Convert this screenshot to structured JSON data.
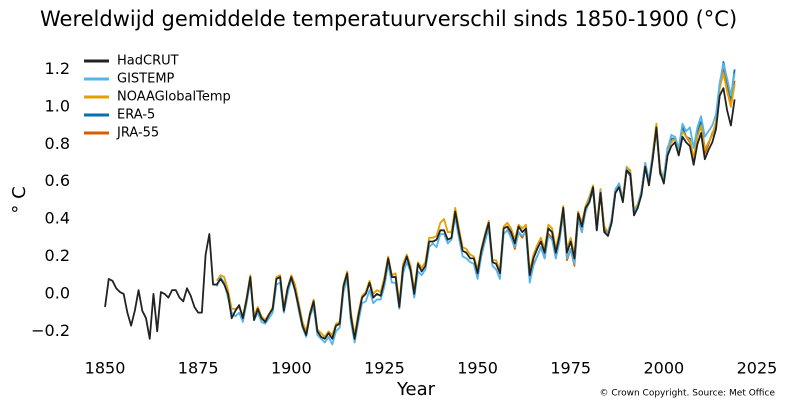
{
  "chart_data": {
    "type": "line",
    "title": "Wereldwijd gemiddelde temperatuurverschil sinds 1850-1900 (°C)",
    "x_label": "Year",
    "y_label": "° C",
    "source": "© Crown Copyright. Source: Met Office",
    "legend": "upper left",
    "grid": false,
    "xlim": [
      1841,
      2030
    ],
    "ylim": [
      -0.3,
      1.32
    ],
    "xticks": [
      1850,
      1875,
      1900,
      1925,
      1950,
      1975,
      2000,
      2025
    ],
    "yticks": [
      {
        "value": -0.2,
        "label": "−0.2"
      },
      {
        "value": 0,
        "label": "0.0"
      },
      0.2,
      0.4,
      0.6,
      0.8,
      {
        "value": 1,
        "label": "1.0"
      },
      {
        "value": 1.2,
        "label": "1.2"
      }
    ],
    "x": [
      1850,
      1851,
      1852,
      1853,
      1854,
      1855,
      1856,
      1857,
      1858,
      1859,
      1860,
      1861,
      1862,
      1863,
      1864,
      1865,
      1866,
      1867,
      1868,
      1869,
      1870,
      1871,
      1872,
      1873,
      1874,
      1875,
      1876,
      1877,
      1878,
      1879,
      1880,
      1881,
      1882,
      1883,
      1884,
      1885,
      1886,
      1887,
      1888,
      1889,
      1890,
      1891,
      1892,
      1893,
      1894,
      1895,
      1896,
      1897,
      1898,
      1899,
      1900,
      1901,
      1902,
      1903,
      1904,
      1905,
      1906,
      1907,
      1908,
      1909,
      1910,
      1911,
      1912,
      1913,
      1914,
      1915,
      1916,
      1917,
      1918,
      1919,
      1920,
      1921,
      1922,
      1923,
      1924,
      1925,
      1926,
      1927,
      1928,
      1929,
      1930,
      1931,
      1932,
      1933,
      1934,
      1935,
      1936,
      1937,
      1938,
      1939,
      1940,
      1941,
      1942,
      1943,
      1944,
      1945,
      1946,
      1947,
      1948,
      1949,
      1950,
      1951,
      1952,
      1953,
      1954,
      1955,
      1956,
      1957,
      1958,
      1959,
      1960,
      1961,
      1962,
      1963,
      1964,
      1965,
      1966,
      1967,
      1968,
      1969,
      1970,
      1971,
      1972,
      1973,
      1974,
      1975,
      1976,
      1977,
      1978,
      1979,
      1980,
      1981,
      1982,
      1983,
      1984,
      1985,
      1986,
      1987,
      1988,
      1989,
      1990,
      1991,
      1992,
      1993,
      1994,
      1995,
      1996,
      1997,
      1998,
      1999,
      2000,
      2001,
      2002,
      2003,
      2004,
      2005,
      2006,
      2007,
      2008,
      2009,
      2010,
      2011,
      2012,
      2013,
      2014,
      2015,
      2016,
      2017,
      2018,
      2019
    ],
    "series": [
      {
        "name": "HadCRUT",
        "color": "#222222",
        "values": [
          -0.07,
          0.08,
          0.07,
          0.03,
          0.01,
          0.0,
          -0.1,
          -0.17,
          -0.09,
          0.02,
          -0.09,
          -0.13,
          -0.24,
          0.0,
          -0.2,
          0.01,
          0.0,
          -0.02,
          0.02,
          0.02,
          -0.02,
          -0.04,
          0.03,
          -0.01,
          -0.07,
          -0.1,
          -0.1,
          0.21,
          0.32,
          0.05,
          0.05,
          0.08,
          0.05,
          0.0,
          -0.13,
          -0.09,
          -0.06,
          -0.13,
          -0.03,
          0.09,
          -0.14,
          -0.08,
          -0.13,
          -0.15,
          -0.11,
          -0.08,
          0.08,
          0.09,
          -0.09,
          0.03,
          0.09,
          0.02,
          -0.07,
          -0.17,
          -0.22,
          -0.11,
          -0.04,
          -0.2,
          -0.23,
          -0.24,
          -0.21,
          -0.24,
          -0.17,
          -0.16,
          0.04,
          0.11,
          -0.12,
          -0.24,
          -0.12,
          -0.02,
          0.0,
          0.06,
          -0.02,
          0.0,
          -0.01,
          0.07,
          0.19,
          0.09,
          0.09,
          -0.07,
          0.14,
          0.2,
          0.13,
          0.0,
          0.16,
          0.12,
          0.15,
          0.28,
          0.28,
          0.29,
          0.34,
          0.34,
          0.29,
          0.3,
          0.44,
          0.33,
          0.23,
          0.22,
          0.19,
          0.19,
          0.11,
          0.23,
          0.31,
          0.38,
          0.17,
          0.16,
          0.11,
          0.35,
          0.36,
          0.33,
          0.27,
          0.36,
          0.33,
          0.35,
          0.1,
          0.19,
          0.24,
          0.28,
          0.22,
          0.35,
          0.33,
          0.22,
          0.31,
          0.46,
          0.22,
          0.28,
          0.19,
          0.43,
          0.36,
          0.46,
          0.49,
          0.57,
          0.34,
          0.54,
          0.33,
          0.31,
          0.38,
          0.54,
          0.57,
          0.49,
          0.66,
          0.64,
          0.42,
          0.46,
          0.53,
          0.68,
          0.58,
          0.72,
          0.89,
          0.65,
          0.59,
          0.74,
          0.79,
          0.81,
          0.74,
          0.84,
          0.81,
          0.79,
          0.69,
          0.8,
          0.86,
          0.72,
          0.77,
          0.81,
          0.88,
          1.06,
          1.1,
          0.98,
          0.9,
          1.04
        ]
      },
      {
        "name": "GISTEMP",
        "color": "#56b4e9",
        "values": [
          null,
          null,
          null,
          null,
          null,
          null,
          null,
          null,
          null,
          null,
          null,
          null,
          null,
          null,
          null,
          null,
          null,
          null,
          null,
          null,
          null,
          null,
          null,
          null,
          null,
          null,
          null,
          null,
          null,
          null,
          0.04,
          0.09,
          0.06,
          -0.02,
          -0.1,
          -0.12,
          -0.1,
          -0.15,
          -0.05,
          0.07,
          -0.14,
          -0.1,
          -0.15,
          -0.16,
          -0.13,
          -0.1,
          0.05,
          0.06,
          -0.1,
          0.0,
          0.08,
          0.02,
          -0.09,
          -0.18,
          -0.23,
          -0.12,
          -0.07,
          -0.22,
          -0.24,
          -0.26,
          -0.23,
          -0.27,
          -0.2,
          -0.18,
          0.01,
          0.08,
          -0.15,
          -0.26,
          -0.15,
          -0.05,
          -0.04,
          0.02,
          -0.05,
          -0.03,
          -0.03,
          0.04,
          0.16,
          0.06,
          0.06,
          -0.08,
          0.11,
          0.17,
          0.12,
          -0.02,
          0.12,
          0.1,
          0.13,
          0.25,
          0.27,
          0.25,
          0.32,
          0.32,
          0.27,
          0.29,
          0.41,
          0.3,
          0.2,
          0.19,
          0.17,
          0.16,
          0.08,
          0.2,
          0.28,
          0.35,
          0.15,
          0.13,
          0.08,
          0.32,
          0.34,
          0.3,
          0.25,
          0.33,
          0.31,
          0.33,
          0.06,
          0.15,
          0.2,
          0.25,
          0.19,
          0.31,
          0.29,
          0.19,
          0.28,
          0.43,
          0.19,
          0.24,
          0.16,
          0.4,
          0.33,
          0.44,
          0.51,
          0.56,
          0.34,
          0.55,
          0.33,
          0.32,
          0.4,
          0.56,
          0.59,
          0.5,
          0.67,
          0.64,
          0.44,
          0.47,
          0.55,
          0.7,
          0.61,
          0.74,
          0.87,
          0.66,
          0.62,
          0.77,
          0.85,
          0.84,
          0.78,
          0.91,
          0.87,
          0.89,
          0.78,
          0.89,
          0.95,
          0.84,
          0.87,
          0.9,
          0.96,
          1.13,
          1.23,
          1.15,
          1.06,
          1.18
        ]
      },
      {
        "name": "NOAAGlobalTemp",
        "color": "#e69f00",
        "values": [
          null,
          null,
          null,
          null,
          null,
          null,
          null,
          null,
          null,
          null,
          null,
          null,
          null,
          null,
          null,
          null,
          null,
          null,
          null,
          null,
          null,
          null,
          null,
          null,
          null,
          null,
          null,
          null,
          null,
          null,
          0.07,
          0.1,
          0.09,
          0.02,
          -0.08,
          -0.08,
          -0.07,
          -0.12,
          -0.02,
          0.1,
          -0.12,
          -0.07,
          -0.12,
          -0.14,
          -0.11,
          -0.07,
          0.09,
          0.1,
          -0.07,
          0.03,
          0.1,
          0.05,
          -0.05,
          -0.15,
          -0.2,
          -0.1,
          -0.03,
          -0.19,
          -0.21,
          -0.23,
          -0.2,
          -0.22,
          -0.16,
          -0.15,
          0.05,
          0.12,
          -0.1,
          -0.22,
          -0.1,
          -0.01,
          0.01,
          0.07,
          0.0,
          0.02,
          0.01,
          0.09,
          0.2,
          0.1,
          0.11,
          -0.05,
          0.16,
          0.21,
          0.15,
          0.02,
          0.17,
          0.14,
          0.17,
          0.3,
          0.3,
          0.31,
          0.38,
          0.4,
          0.33,
          0.33,
          0.46,
          0.35,
          0.25,
          0.24,
          0.21,
          0.2,
          0.13,
          0.24,
          0.32,
          0.39,
          0.18,
          0.18,
          0.12,
          0.36,
          0.38,
          0.35,
          0.29,
          0.37,
          0.35,
          0.37,
          0.12,
          0.21,
          0.26,
          0.3,
          0.24,
          0.37,
          0.35,
          0.24,
          0.33,
          0.47,
          0.24,
          0.3,
          0.21,
          0.44,
          0.38,
          0.47,
          0.52,
          0.58,
          0.37,
          0.56,
          0.36,
          0.33,
          0.4,
          0.56,
          0.59,
          0.51,
          0.68,
          0.66,
          0.45,
          0.48,
          0.55,
          0.7,
          0.6,
          0.75,
          0.91,
          0.67,
          0.62,
          0.77,
          0.81,
          0.83,
          0.77,
          0.87,
          0.84,
          0.82,
          0.73,
          0.84,
          0.9,
          0.77,
          0.81,
          0.85,
          0.92,
          1.1,
          1.18,
          1.08,
          1.0,
          1.12
        ]
      },
      {
        "name": "ERA-5",
        "color": "#0072b2",
        "values": [
          null,
          null,
          null,
          null,
          null,
          null,
          null,
          null,
          null,
          null,
          null,
          null,
          null,
          null,
          null,
          null,
          null,
          null,
          null,
          null,
          null,
          null,
          null,
          null,
          null,
          null,
          null,
          null,
          null,
          null,
          null,
          null,
          null,
          null,
          null,
          null,
          null,
          null,
          null,
          null,
          null,
          null,
          null,
          null,
          null,
          null,
          null,
          null,
          null,
          null,
          null,
          null,
          null,
          null,
          null,
          null,
          null,
          null,
          null,
          null,
          null,
          null,
          null,
          null,
          null,
          null,
          null,
          null,
          null,
          null,
          null,
          null,
          null,
          null,
          null,
          null,
          null,
          null,
          null,
          null,
          null,
          null,
          null,
          null,
          null,
          null,
          null,
          null,
          null,
          null,
          null,
          null,
          null,
          null,
          null,
          null,
          null,
          null,
          null,
          null,
          null,
          null,
          null,
          null,
          null,
          null,
          null,
          null,
          null,
          null,
          null,
          null,
          null,
          null,
          null,
          null,
          null,
          null,
          null,
          null,
          null,
          null,
          null,
          null,
          null,
          null,
          null,
          null,
          null,
          0.44,
          0.5,
          0.55,
          0.35,
          0.55,
          0.35,
          0.32,
          0.4,
          0.55,
          0.58,
          0.51,
          0.66,
          0.63,
          0.43,
          0.47,
          0.55,
          0.68,
          0.6,
          0.72,
          0.88,
          0.66,
          0.62,
          0.78,
          0.83,
          0.83,
          0.76,
          0.89,
          0.84,
          0.83,
          0.7,
          0.86,
          0.92,
          0.77,
          0.81,
          0.85,
          0.91,
          1.11,
          1.24,
          1.14,
          1.05,
          1.2
        ]
      },
      {
        "name": "JRA-55",
        "color": "#d55e00",
        "values": [
          null,
          null,
          null,
          null,
          null,
          null,
          null,
          null,
          null,
          null,
          null,
          null,
          null,
          null,
          null,
          null,
          null,
          null,
          null,
          null,
          null,
          null,
          null,
          null,
          null,
          null,
          null,
          null,
          null,
          null,
          null,
          null,
          null,
          null,
          null,
          null,
          null,
          null,
          null,
          null,
          null,
          null,
          null,
          null,
          null,
          null,
          null,
          null,
          null,
          null,
          null,
          null,
          null,
          null,
          null,
          null,
          null,
          null,
          null,
          null,
          null,
          null,
          null,
          null,
          null,
          null,
          null,
          null,
          null,
          null,
          null,
          null,
          null,
          null,
          null,
          null,
          null,
          null,
          null,
          null,
          null,
          null,
          null,
          null,
          null,
          null,
          null,
          null,
          null,
          null,
          null,
          null,
          null,
          null,
          null,
          null,
          null,
          null,
          null,
          null,
          null,
          null,
          null,
          null,
          null,
          null,
          null,
          null,
          0.35,
          0.31,
          0.24,
          0.33,
          0.3,
          0.34,
          0.08,
          0.16,
          0.2,
          0.25,
          0.19,
          0.32,
          0.3,
          0.19,
          0.29,
          0.43,
          0.18,
          0.24,
          0.15,
          0.4,
          0.33,
          0.45,
          0.49,
          0.56,
          0.35,
          0.56,
          0.34,
          0.31,
          0.39,
          0.55,
          0.59,
          0.5,
          0.67,
          0.64,
          0.42,
          0.47,
          0.55,
          0.69,
          0.6,
          0.74,
          0.9,
          0.64,
          0.61,
          0.77,
          0.83,
          0.83,
          0.76,
          0.88,
          0.84,
          0.81,
          0.7,
          0.85,
          0.9,
          0.75,
          0.8,
          0.86,
          0.9,
          1.1,
          1.2,
          1.1,
          1.02,
          1.14
        ]
      }
    ]
  }
}
